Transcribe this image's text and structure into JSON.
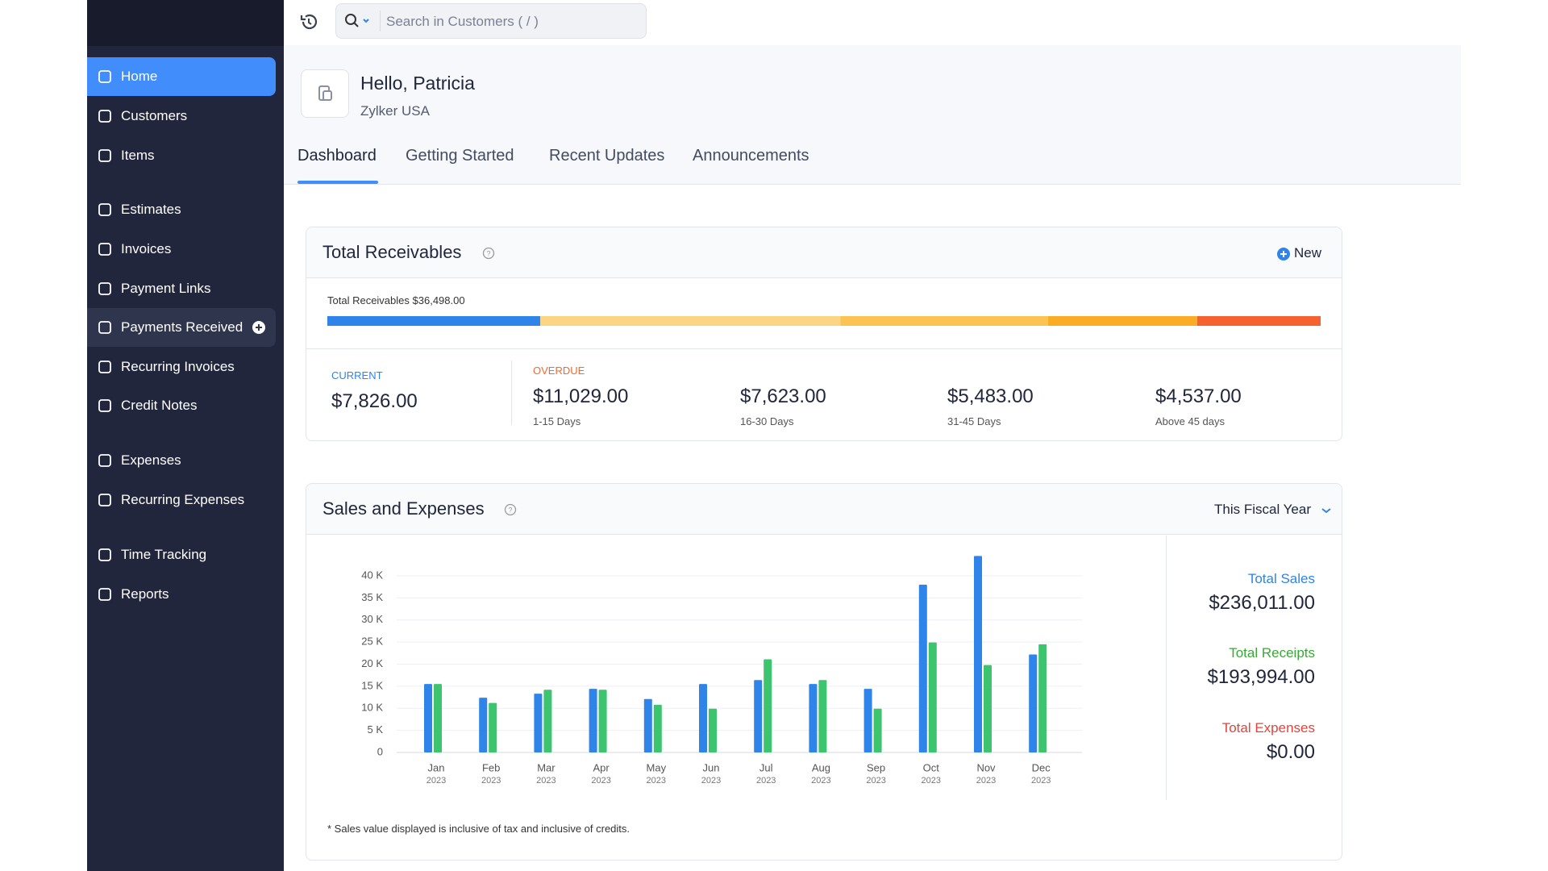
{
  "search_placeholder": "Search in Customers ( / )",
  "sidebar": [
    "Home",
    "Customers",
    "Items",
    "Estimates",
    "Invoices",
    "Payment Links",
    "Payments Received",
    "Recurring Invoices",
    "Credit Notes",
    "Expenses",
    "Recurring Expenses",
    "Time Tracking",
    "Reports"
  ],
  "header": {
    "greeting": "Hello, Patricia",
    "organization": "Zylker USA"
  },
  "tabs": [
    "Dashboard",
    "Getting Started",
    "Recent Updates",
    "Announcements"
  ],
  "receivables": {
    "title": "Total Receivables",
    "new_button": "New",
    "total_label": "Total Receivables",
    "total": {
      "value": 36498,
      "label": "$36,498.00"
    },
    "current": {
      "label": "CURRENT",
      "amount": {
        "value": 7826,
        "label": "$7,826.00"
      },
      "color": "#2f84ea"
    },
    "overdue_label": "OVERDUE",
    "overdue": [
      {
        "amount": {
          "value": 11029,
          "label": "$11,029.00"
        },
        "period": "1-15 Days",
        "color": "#fbd584"
      },
      {
        "amount": {
          "value": 7623,
          "label": "$7,623.00"
        },
        "period": "16-30 Days",
        "color": "#fbc452"
      },
      {
        "amount": {
          "value": 5483,
          "label": "$5,483.00"
        },
        "period": "31-45 Days",
        "color": "#f9ac24"
      },
      {
        "amount": {
          "value": 4537,
          "label": "$4,537.00"
        },
        "period": "Above 45 days",
        "color": "#f5622f"
      }
    ]
  },
  "sales_expenses": {
    "title": "Sales and Expenses",
    "period": "This Fiscal Year",
    "chart_data": {
      "type": "bar",
      "categories": [
        "Jan",
        "Feb",
        "Mar",
        "Apr",
        "May",
        "Jun",
        "Jul",
        "Aug",
        "Sep",
        "Oct",
        "Nov",
        "Dec"
      ],
      "category_years": [
        "2023",
        "2023",
        "2023",
        "2023",
        "2023",
        "2023",
        "2023",
        "2023",
        "2023",
        "2023",
        "2023",
        "2023"
      ],
      "series": [
        {
          "color": "#2f84ea",
          "values": [
            15500,
            12400,
            13300,
            14400,
            12100,
            15500,
            16400,
            15500,
            14400,
            38000,
            44500,
            22200
          ]
        },
        {
          "color": "#3cc46e",
          "values": [
            15500,
            11200,
            14200,
            14200,
            10800,
            9900,
            21100,
            16400,
            9900,
            24900,
            19800,
            24500
          ]
        }
      ],
      "ylim": [
        0,
        45000
      ],
      "yticks": [
        0,
        {
          "value": 5000,
          "label": "5 K"
        },
        {
          "value": 10000,
          "label": "10 K"
        },
        {
          "value": 15000,
          "label": "15 K"
        },
        {
          "value": 20000,
          "label": "20 K"
        },
        {
          "value": 25000,
          "label": "25 K"
        },
        {
          "value": 30000,
          "label": "30 K"
        },
        {
          "value": 35000,
          "label": "35 K"
        },
        {
          "value": 40000,
          "label": "40 K"
        }
      ],
      "grid": true
    },
    "totals": [
      {
        "label": "Total Sales",
        "amount": "$236,011.00",
        "color": "#2f84ea"
      },
      {
        "label": "Total Receipts",
        "amount": "$193,994.00",
        "color": "#3aa839"
      },
      {
        "label": "Total Expenses",
        "amount": "$0.00",
        "color": "#e5433c"
      }
    ],
    "footnote": "* Sales value displayed is inclusive of tax and inclusive of credits."
  }
}
